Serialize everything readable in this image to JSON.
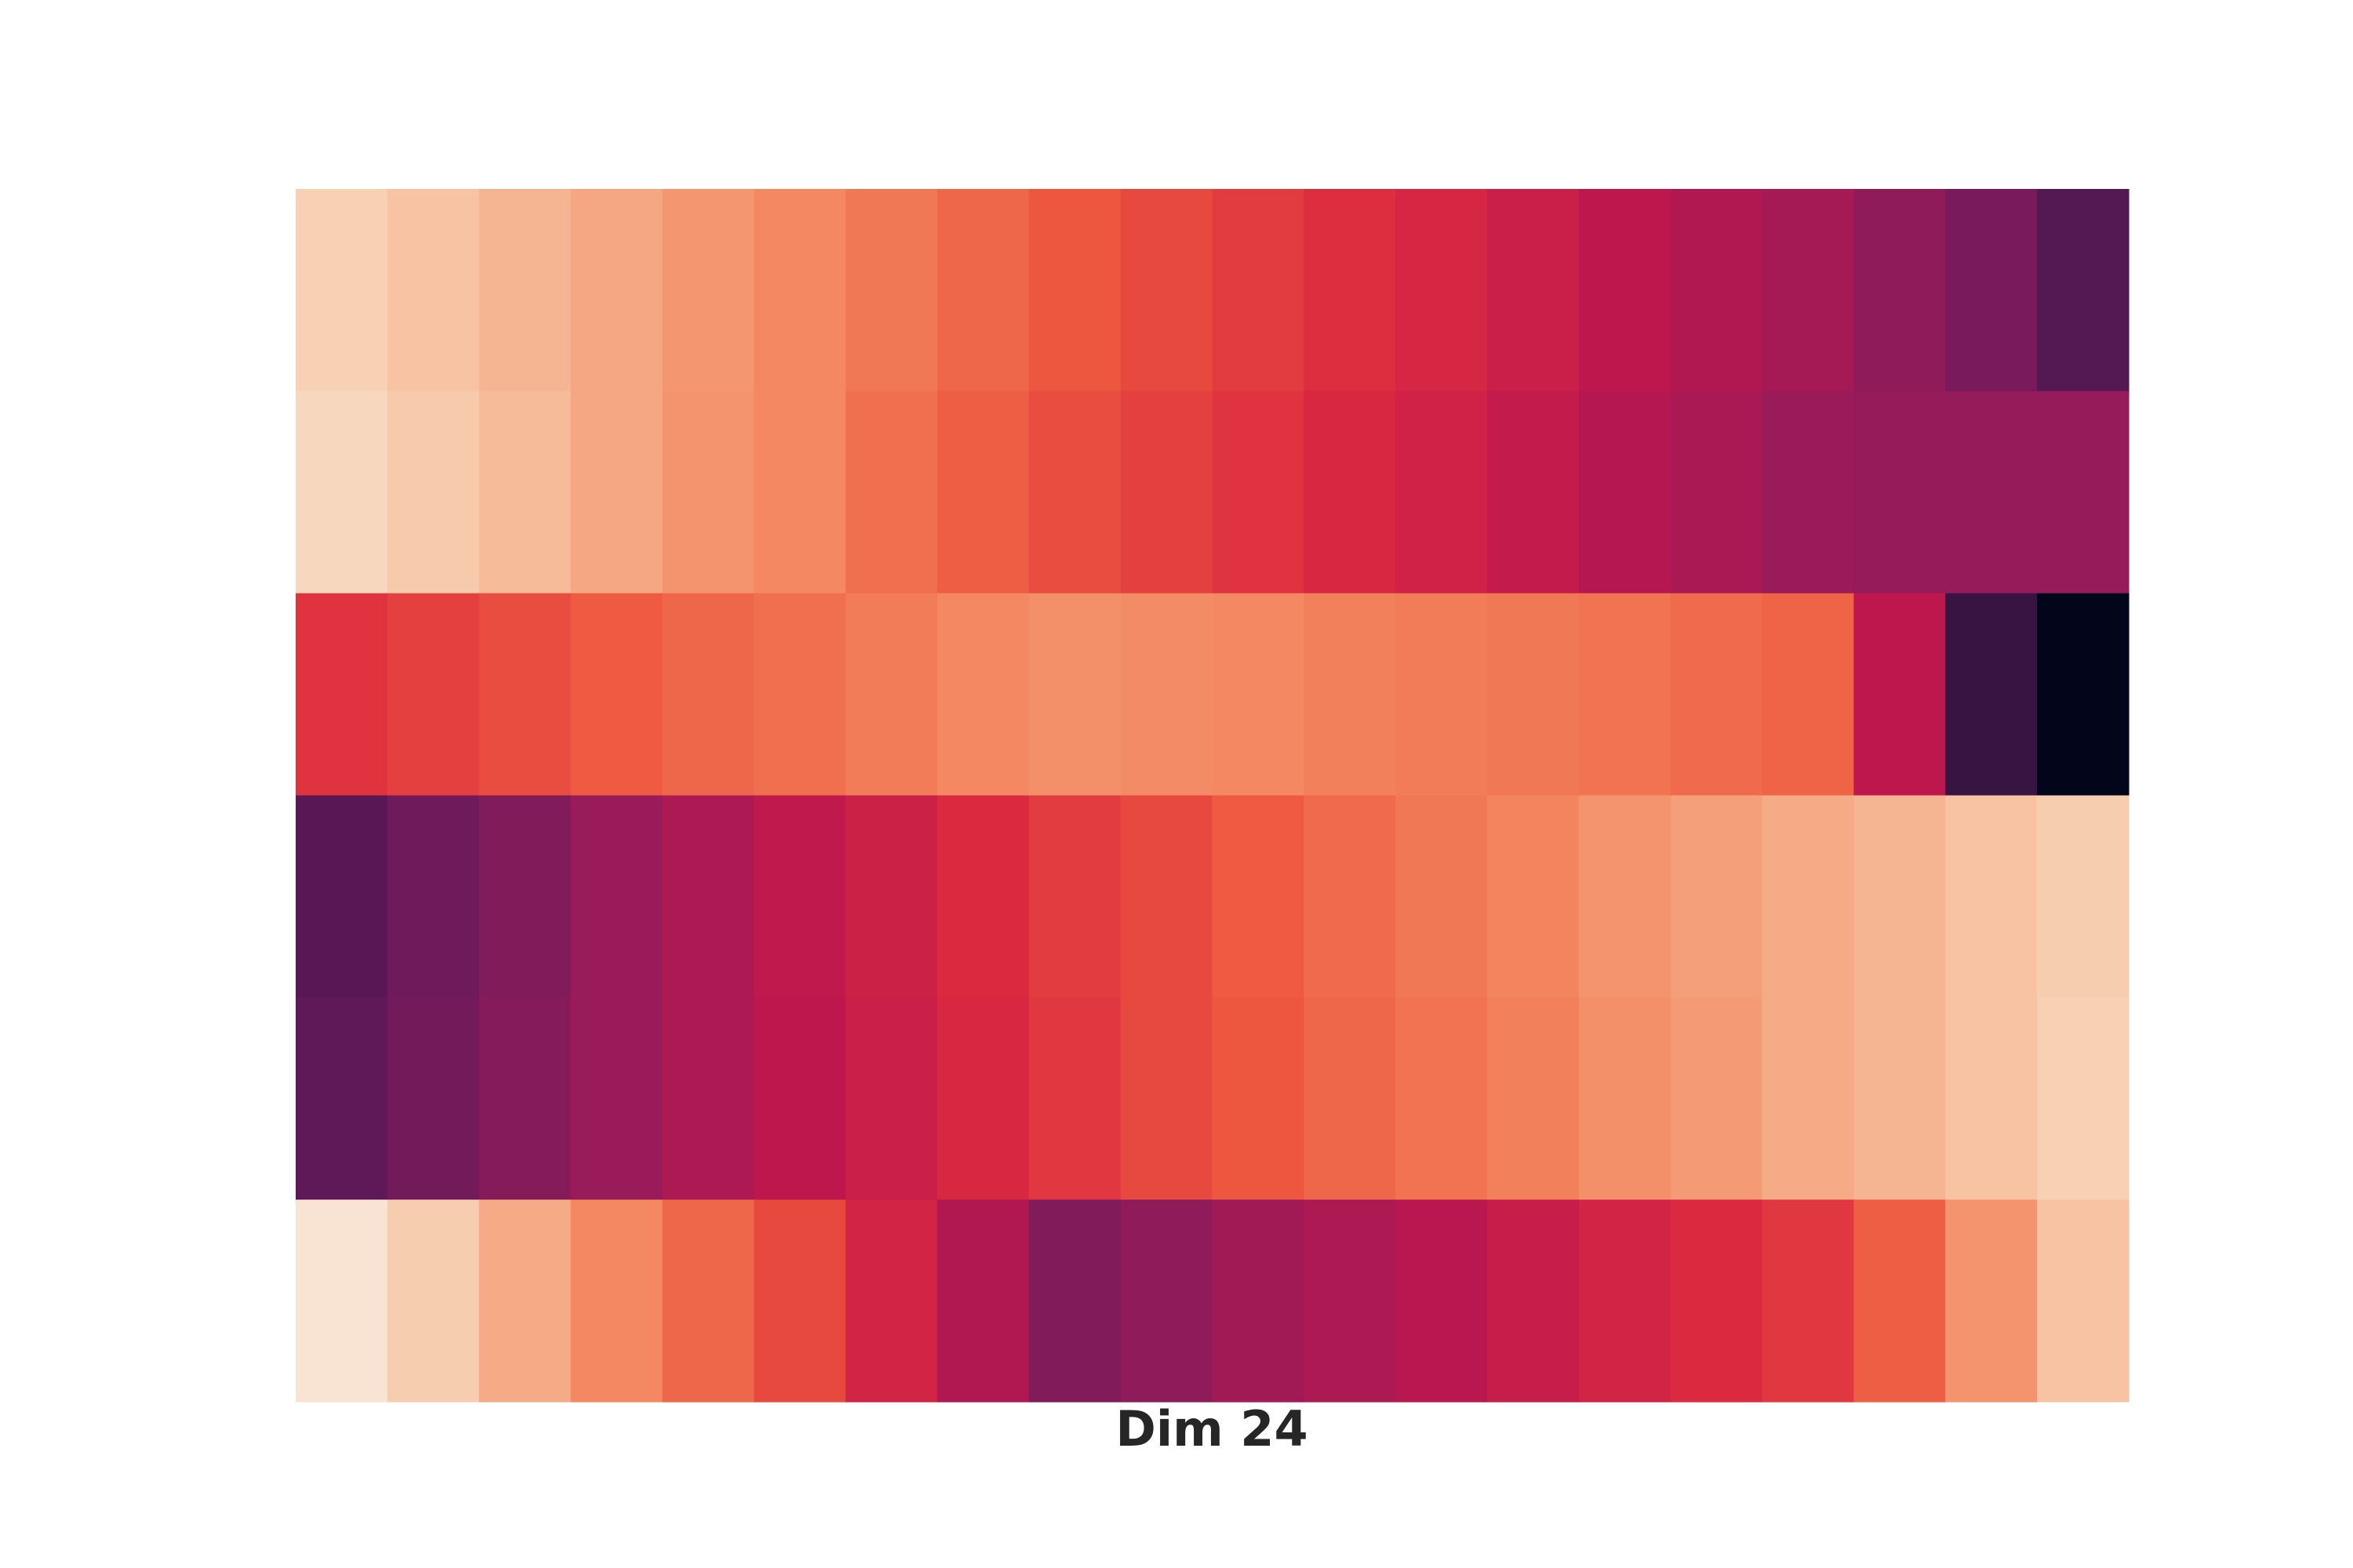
{
  "chart_data": {
    "type": "heatmap",
    "title": "",
    "xlabel": "Dim 24",
    "ylabel": "",
    "colormap": "rocket",
    "value_range": [
      0,
      1
    ],
    "rows": 6,
    "columns": 20,
    "grid": false,
    "ticks_visible": false,
    "values": [
      [
        0.92,
        0.88,
        0.84,
        0.8,
        0.76,
        0.72,
        0.68,
        0.64,
        0.6,
        0.57,
        0.54,
        0.51,
        0.48,
        0.44,
        0.4,
        0.37,
        0.34,
        0.29,
        0.24,
        0.17
      ],
      [
        0.94,
        0.9,
        0.86,
        0.8,
        0.75,
        0.72,
        0.66,
        0.62,
        0.58,
        0.55,
        0.52,
        0.49,
        0.46,
        0.42,
        0.38,
        0.35,
        0.31,
        0.3,
        0.3,
        0.3
      ],
      [
        0.52,
        0.55,
        0.58,
        0.61,
        0.64,
        0.66,
        0.69,
        0.72,
        0.74,
        0.73,
        0.72,
        0.7,
        0.69,
        0.68,
        0.67,
        0.65,
        0.63,
        0.4,
        0.12,
        0.0
      ],
      [
        0.18,
        0.22,
        0.26,
        0.31,
        0.36,
        0.41,
        0.45,
        0.5,
        0.54,
        0.57,
        0.61,
        0.65,
        0.68,
        0.71,
        0.75,
        0.78,
        0.81,
        0.84,
        0.88,
        0.91
      ],
      [
        0.19,
        0.23,
        0.27,
        0.31,
        0.36,
        0.4,
        0.44,
        0.49,
        0.53,
        0.57,
        0.6,
        0.64,
        0.67,
        0.7,
        0.74,
        0.77,
        0.81,
        0.84,
        0.88,
        0.92
      ],
      [
        0.98,
        0.91,
        0.81,
        0.72,
        0.64,
        0.57,
        0.47,
        0.37,
        0.26,
        0.29,
        0.33,
        0.36,
        0.39,
        0.43,
        0.47,
        0.5,
        0.53,
        0.62,
        0.75,
        0.88
      ]
    ]
  }
}
